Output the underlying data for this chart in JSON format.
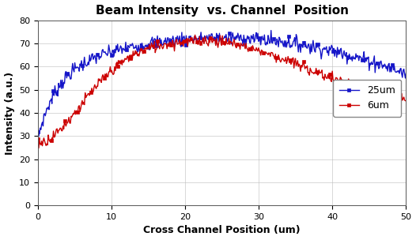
{
  "title": "Beam Intensity  vs. Channel  Position",
  "xlabel": "Cross Channel Position (um)",
  "ylabel": "Intensity (a.u.)",
  "xlim": [
    0,
    50
  ],
  "ylim": [
    0,
    80
  ],
  "xticks": [
    0,
    10,
    20,
    30,
    40,
    50
  ],
  "yticks": [
    0,
    10,
    20,
    30,
    40,
    50,
    60,
    70,
    80
  ],
  "legend_labels": [
    "25um",
    "6um"
  ],
  "line_colors": [
    "#1515c8",
    "#cc0000"
  ],
  "marker_size": 2.5,
  "line_width": 1.0,
  "background_color": "#ffffff",
  "title_fontsize": 11,
  "axis_label_fontsize": 9,
  "tick_fontsize": 8,
  "legend_fontsize": 9,
  "noise_blue": 1.5,
  "noise_red": 1.2
}
